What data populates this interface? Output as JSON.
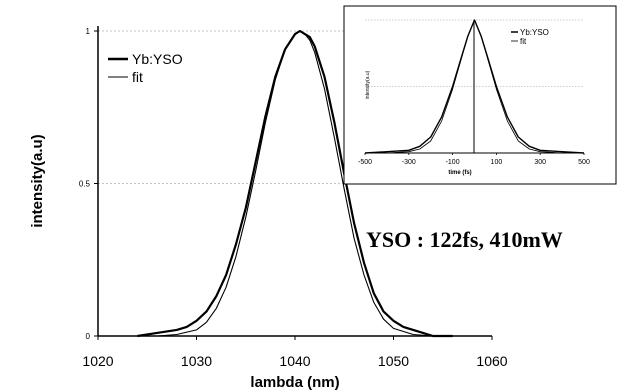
{
  "chart_data": [
    {
      "type": "line",
      "xlabel": "lambda (nm)",
      "ylabel": "intensity(a.u)",
      "xlim": [
        1020,
        1060
      ],
      "ylim": [
        0,
        1
      ],
      "xticks": [
        "1020",
        "1030",
        "1040",
        "1050",
        "1060"
      ],
      "yticks": [
        "0",
        "0.5",
        "1"
      ],
      "grid": true,
      "legend_position": "top-left",
      "annotation": "YSO : 122fs, 410mW",
      "series": [
        {
          "name": "Yb:YSO",
          "x": [
            1024,
            1026,
            1028,
            1029,
            1030,
            1031,
            1032,
            1033,
            1034,
            1035,
            1036,
            1037,
            1038,
            1039,
            1040,
            1040.5,
            1041,
            1041.5,
            1042,
            1043,
            1044,
            1045,
            1046,
            1047,
            1048,
            1049,
            1050,
            1051,
            1052,
            1053,
            1054,
            1056
          ],
          "y": [
            0,
            0.01,
            0.02,
            0.03,
            0.05,
            0.08,
            0.13,
            0.2,
            0.3,
            0.42,
            0.57,
            0.72,
            0.85,
            0.94,
            0.99,
            1.0,
            0.99,
            0.98,
            0.95,
            0.85,
            0.7,
            0.53,
            0.37,
            0.24,
            0.14,
            0.08,
            0.05,
            0.03,
            0.02,
            0.01,
            0.0,
            0.0
          ]
        },
        {
          "name": "fit",
          "x": [
            1024,
            1026,
            1028,
            1030,
            1031,
            1032,
            1033,
            1034,
            1035,
            1036,
            1037,
            1038,
            1039,
            1040,
            1040.5,
            1041,
            1041.5,
            1042,
            1043,
            1044,
            1045,
            1046,
            1047,
            1048,
            1049,
            1050,
            1052,
            1054,
            1056
          ],
          "y": [
            0,
            0.0,
            0.005,
            0.02,
            0.045,
            0.09,
            0.16,
            0.26,
            0.39,
            0.54,
            0.7,
            0.84,
            0.94,
            0.99,
            1.0,
            0.99,
            0.97,
            0.93,
            0.81,
            0.65,
            0.48,
            0.32,
            0.2,
            0.11,
            0.055,
            0.025,
            0.005,
            0.0,
            0.0
          ]
        }
      ]
    },
    {
      "type": "line",
      "xlabel": "time (fs)",
      "ylabel": "intensity(a.u)",
      "xlim": [
        -500,
        500
      ],
      "ylim": [
        0,
        1
      ],
      "xticks": [
        "-500",
        "-300",
        "-100",
        "100",
        "300",
        "500"
      ],
      "grid": true,
      "legend_position": "top-right",
      "series": [
        {
          "name": "Yb:YSO",
          "x": [
            -500,
            -400,
            -300,
            -250,
            -200,
            -150,
            -100,
            -60,
            -30,
            0,
            30,
            60,
            100,
            150,
            200,
            250,
            300,
            400,
            500
          ],
          "y": [
            0.0,
            0.01,
            0.02,
            0.05,
            0.12,
            0.27,
            0.5,
            0.72,
            0.88,
            1.0,
            0.88,
            0.72,
            0.5,
            0.27,
            0.12,
            0.05,
            0.02,
            0.01,
            0.0
          ]
        },
        {
          "name": "fit",
          "x": [
            -500,
            -400,
            -300,
            -250,
            -200,
            -150,
            -100,
            -60,
            -30,
            0,
            30,
            60,
            100,
            150,
            200,
            250,
            300,
            400,
            500
          ],
          "y": [
            0.0,
            0.0,
            0.01,
            0.03,
            0.09,
            0.24,
            0.48,
            0.71,
            0.88,
            1.0,
            0.88,
            0.71,
            0.48,
            0.24,
            0.09,
            0.03,
            0.01,
            0.0,
            0.0
          ]
        }
      ]
    }
  ]
}
